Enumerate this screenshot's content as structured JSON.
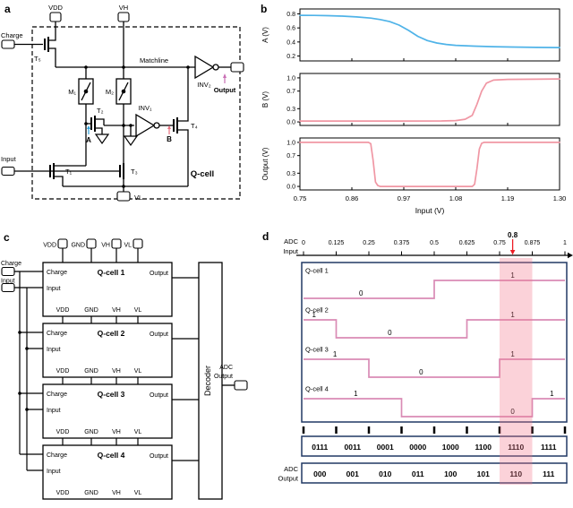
{
  "figure": {
    "panel_a_label": "a",
    "panel_b_label": "b",
    "panel_c_label": "c",
    "panel_d_label": "d"
  },
  "colors": {
    "curve_blue": "#4fb3e8",
    "curve_pink": "#f097a4",
    "wave_pink": "#d98bb5",
    "red": "#ed1c24",
    "navy": "#203864",
    "node_a_blue": "#2e9fd8",
    "node_b_red": "#e8707e",
    "output_pink": "#c96fb5",
    "highlight_pink": "#f4778b"
  },
  "panel_a": {
    "labels": {
      "charge": "Charge",
      "vdd": "VDD",
      "vh": "VH",
      "vl": "VL",
      "input": "Input",
      "output": "Output",
      "matchline": "Matchline",
      "t1": "T₁",
      "t2": "T₂",
      "t3": "T₃",
      "t4": "T₄",
      "t5": "T₅",
      "m1": "M₁",
      "m2": "M₂",
      "inv1": "INV₁",
      "inv2": "INV₂",
      "node_a": "A",
      "node_b": "B",
      "qcell": "Q-cell"
    }
  },
  "panel_c": {
    "top_pins": [
      "VDD",
      "GND",
      "VH",
      "VL"
    ],
    "left_pins": [
      "Charge",
      "Input"
    ],
    "cells": [
      {
        "title": "Q-cell 1",
        "charge": "Charge",
        "input": "Input",
        "output": "Output",
        "bottom_pins": [
          "VDD",
          "GND",
          "VH",
          "VL"
        ]
      },
      {
        "title": "Q-cell 2",
        "charge": "Charge",
        "input": "Input",
        "output": "Output",
        "bottom_pins": [
          "VDD",
          "GND",
          "VH",
          "VL"
        ]
      },
      {
        "title": "Q-cell 3",
        "charge": "Charge",
        "input": "Input",
        "output": "Output",
        "bottom_pins": [
          "VDD",
          "GND",
          "VH",
          "VL"
        ]
      },
      {
        "title": "Q-cell 4",
        "charge": "Charge",
        "input": "Input",
        "output": "Output",
        "bottom_pins": [
          "VDD",
          "GND",
          "VH",
          "VL"
        ]
      }
    ],
    "decoder": "Decoder",
    "adc_output": [
      "ADC",
      "Output"
    ]
  },
  "chart_data": {
    "panel_b": {
      "type": "line",
      "xlabel": "Input (V)",
      "xlim": [
        0.75,
        1.3
      ],
      "xticks": [
        0.75,
        0.86,
        0.97,
        1.08,
        1.19,
        1.3
      ],
      "charts": [
        {
          "ylabel": "A (V)",
          "ylim": [
            0.13,
            0.87
          ],
          "yticks": [
            0.2,
            0.4,
            0.6,
            0.8
          ],
          "color_key": "curve_blue",
          "points": [
            [
              0.75,
              0.78
            ],
            [
              0.78,
              0.778
            ],
            [
              0.81,
              0.774
            ],
            [
              0.84,
              0.768
            ],
            [
              0.87,
              0.757
            ],
            [
              0.9,
              0.74
            ],
            [
              0.92,
              0.72
            ],
            [
              0.94,
              0.69
            ],
            [
              0.96,
              0.64
            ],
            [
              0.98,
              0.565
            ],
            [
              1.0,
              0.48
            ],
            [
              1.02,
              0.42
            ],
            [
              1.04,
              0.385
            ],
            [
              1.06,
              0.365
            ],
            [
              1.08,
              0.352
            ],
            [
              1.12,
              0.34
            ],
            [
              1.16,
              0.333
            ],
            [
              1.2,
              0.328
            ],
            [
              1.25,
              0.323
            ],
            [
              1.3,
              0.32
            ]
          ]
        },
        {
          "ylabel": "B (V)",
          "ylim": [
            -0.08,
            1.1
          ],
          "yticks": [
            0.0,
            0.3,
            0.7,
            1.0
          ],
          "color_key": "curve_pink",
          "points": [
            [
              0.75,
              0.02
            ],
            [
              0.95,
              0.02
            ],
            [
              1.05,
              0.022
            ],
            [
              1.08,
              0.03
            ],
            [
              1.1,
              0.06
            ],
            [
              1.115,
              0.15
            ],
            [
              1.125,
              0.4
            ],
            [
              1.135,
              0.7
            ],
            [
              1.145,
              0.88
            ],
            [
              1.16,
              0.95
            ],
            [
              1.19,
              0.965
            ],
            [
              1.25,
              0.97
            ],
            [
              1.3,
              0.975
            ]
          ]
        },
        {
          "ylabel": "Output (V)",
          "ylim": [
            -0.08,
            1.1
          ],
          "yticks": [
            0.0,
            0.3,
            0.7,
            1.0
          ],
          "color_key": "curve_pink",
          "points": [
            [
              0.75,
              1.0
            ],
            [
              0.895,
              1.0
            ],
            [
              0.9,
              0.97
            ],
            [
              0.905,
              0.6
            ],
            [
              0.91,
              0.1
            ],
            [
              0.915,
              0.02
            ],
            [
              0.92,
              0.0
            ],
            [
              1.115,
              0.0
            ],
            [
              1.12,
              0.05
            ],
            [
              1.125,
              0.4
            ],
            [
              1.13,
              0.85
            ],
            [
              1.135,
              0.98
            ],
            [
              1.14,
              1.0
            ],
            [
              1.3,
              1.0
            ]
          ]
        }
      ]
    },
    "panel_d": {
      "type": "digital-timing",
      "xlim": [
        0,
        1
      ],
      "xticks": [
        0,
        0.125,
        0.25,
        0.375,
        0.5,
        0.625,
        0.75,
        0.875,
        1
      ],
      "x_tick_labels": [
        "0",
        "0.125",
        "0.25",
        "0.375",
        "0.5",
        "0.625",
        "0.75",
        "0.875",
        "1"
      ],
      "axis_label": [
        "ADC",
        "Input"
      ],
      "marker": {
        "value": 0.8,
        "label": "0.8"
      },
      "highlight_interval": [
        0.75,
        0.875
      ],
      "rows": [
        {
          "name": "Q-cell 1",
          "levels": [
            0,
            0,
            0,
            0,
            1,
            1,
            1,
            1
          ],
          "annotations": [
            {
              "t": 0.22,
              "text": "0"
            },
            {
              "t": 0.8,
              "text": "1"
            }
          ]
        },
        {
          "name": "Q-cell 2",
          "levels": [
            1,
            0,
            0,
            0,
            0,
            1,
            1,
            1
          ],
          "annotations": [
            {
              "t": 0.04,
              "text": "1"
            },
            {
              "t": 0.33,
              "text": "0"
            },
            {
              "t": 0.8,
              "text": "1"
            }
          ]
        },
        {
          "name": "Q-cell 3",
          "levels": [
            1,
            1,
            0,
            0,
            0,
            0,
            1,
            1
          ],
          "annotations": [
            {
              "t": 0.12,
              "text": "1"
            },
            {
              "t": 0.45,
              "text": "0"
            },
            {
              "t": 0.8,
              "text": "1"
            }
          ]
        },
        {
          "name": "Q-cell 4",
          "levels": [
            1,
            1,
            1,
            0,
            0,
            0,
            0,
            1
          ],
          "annotations": [
            {
              "t": 0.2,
              "text": "1"
            },
            {
              "t": 0.8,
              "text": "0"
            },
            {
              "t": 0.95,
              "text": "1"
            }
          ]
        }
      ],
      "thermometer_codes": [
        "0111",
        "0011",
        "0001",
        "0000",
        "1000",
        "1100",
        "1110",
        "1111"
      ],
      "adc_codes": [
        "000",
        "001",
        "010",
        "011",
        "100",
        "101",
        "110",
        "111"
      ],
      "highlight_code_index": 6,
      "output_label": [
        "ADC",
        "Output"
      ]
    }
  }
}
